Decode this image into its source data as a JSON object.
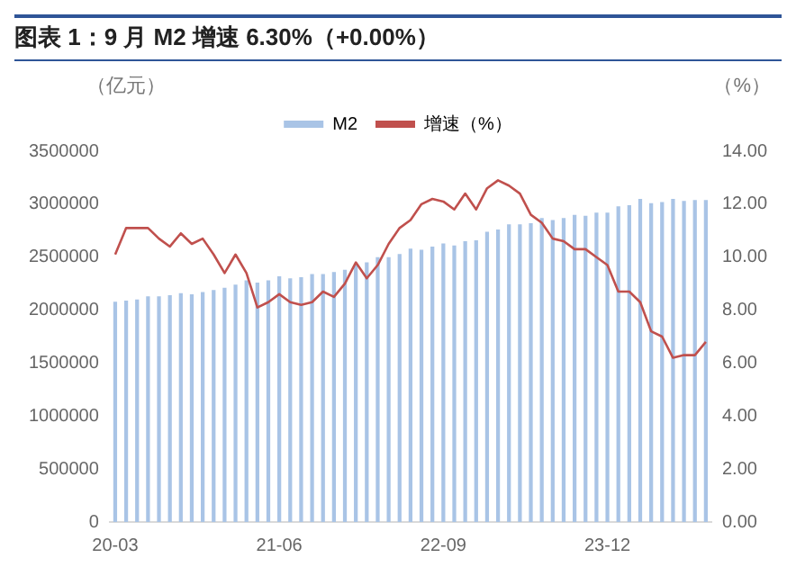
{
  "chart_data": {
    "type": "bar",
    "title": "图表 1：9 月 M2 增速 6.30%（+0.00%）",
    "ylabel": "（亿元）",
    "y2label": "（%）",
    "categories": [
      "20-03",
      null,
      null,
      null,
      null,
      null,
      null,
      null,
      null,
      null,
      null,
      null,
      null,
      null,
      null,
      "21-06",
      null,
      null,
      null,
      null,
      null,
      null,
      null,
      null,
      null,
      null,
      null,
      null,
      null,
      null,
      "22-09",
      null,
      null,
      null,
      null,
      null,
      null,
      null,
      null,
      null,
      null,
      null,
      null,
      null,
      null,
      "23-12",
      null,
      null,
      null,
      null,
      null,
      null,
      null,
      null,
      null
    ],
    "series": [
      {
        "name": "M2",
        "color": "#a9c4e6",
        "values": [
          2080000,
          2090000,
          2100000,
          2130000,
          2130000,
          2140000,
          2160000,
          2150000,
          2170000,
          2190000,
          2210000,
          2240000,
          2280000,
          2260000,
          2280000,
          2320000,
          2300000,
          2310000,
          2340000,
          2340000,
          2360000,
          2380000,
          2430000,
          2450000,
          2500000,
          2500000,
          2530000,
          2580000,
          2570000,
          2600000,
          2630000,
          2610000,
          2650000,
          2660000,
          2740000,
          2760000,
          2810000,
          2810000,
          2820000,
          2870000,
          2850000,
          2870000,
          2900000,
          2890000,
          2920000,
          2920000,
          2980000,
          2990000,
          3050000,
          3010000,
          3020000,
          3050000,
          3030000,
          3040000,
          3040000
        ]
      },
      {
        "name": "增速（%）",
        "type": "line",
        "axis": "y2",
        "color": "#c0504d",
        "values": [
          10.1,
          11.1,
          11.1,
          11.1,
          10.7,
          10.4,
          10.9,
          10.5,
          10.7,
          10.1,
          9.4,
          10.1,
          9.4,
          8.1,
          8.3,
          8.6,
          8.3,
          8.2,
          8.3,
          8.7,
          8.5,
          9.0,
          9.8,
          9.2,
          9.7,
          10.5,
          11.1,
          11.4,
          12.0,
          12.2,
          12.1,
          11.8,
          12.4,
          11.8,
          12.6,
          12.9,
          12.7,
          12.4,
          11.6,
          11.3,
          10.7,
          10.6,
          10.3,
          10.3,
          10.0,
          9.7,
          8.7,
          8.7,
          8.3,
          7.2,
          7.0,
          6.2,
          6.3,
          6.3,
          6.8
        ]
      }
    ],
    "ylim": [
      0,
      3500000
    ],
    "yticks": [
      0,
      500000,
      1000000,
      1500000,
      2000000,
      2500000,
      3000000,
      3500000
    ],
    "y2lim": [
      0,
      14
    ],
    "y2ticks": [
      {
        "value": 0,
        "label": "0.00"
      },
      {
        "value": 2,
        "label": "2.00"
      },
      {
        "value": 4,
        "label": "4.00"
      },
      {
        "value": 6,
        "label": "6.00"
      },
      {
        "value": 8,
        "label": "8.00"
      },
      {
        "value": 10,
        "label": "10.00"
      },
      {
        "value": 12,
        "label": "12.00"
      },
      {
        "value": 14,
        "label": "14.00"
      }
    ],
    "grid": false,
    "legend": "top",
    "marker": "none",
    "line_style": "solid"
  }
}
